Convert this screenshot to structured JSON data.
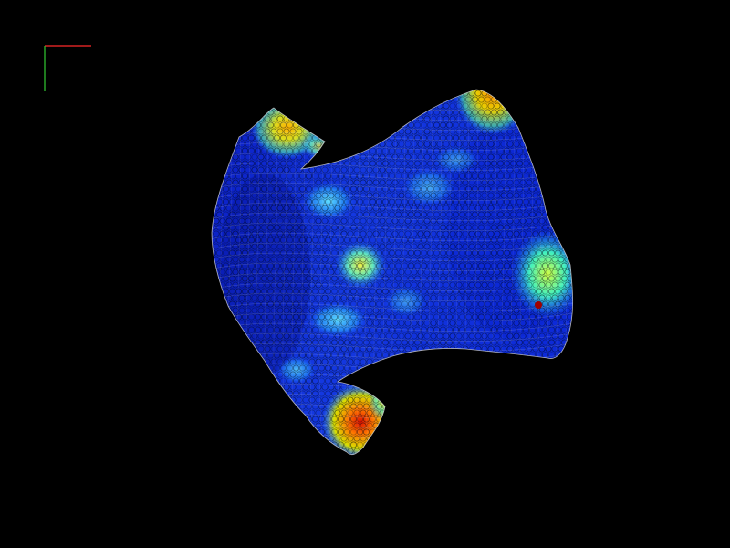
{
  "viewport": {
    "background": "#000000"
  },
  "axes": {
    "x_axis_color": "#ff2a2a",
    "y_axis_color": "#33cc33",
    "x_axis_icon": "x-axis-line",
    "y_axis_icon": "y-axis-line"
  },
  "mesh": {
    "wireframe_color": "#e6e6e6",
    "colormap": "jet",
    "colormap_stops": [
      "#00008f",
      "#0000ff",
      "#0070ff",
      "#00dfff",
      "#50ff9f",
      "#c0ff30",
      "#ffd000",
      "#ff6000",
      "#e00000",
      "#800000"
    ]
  }
}
